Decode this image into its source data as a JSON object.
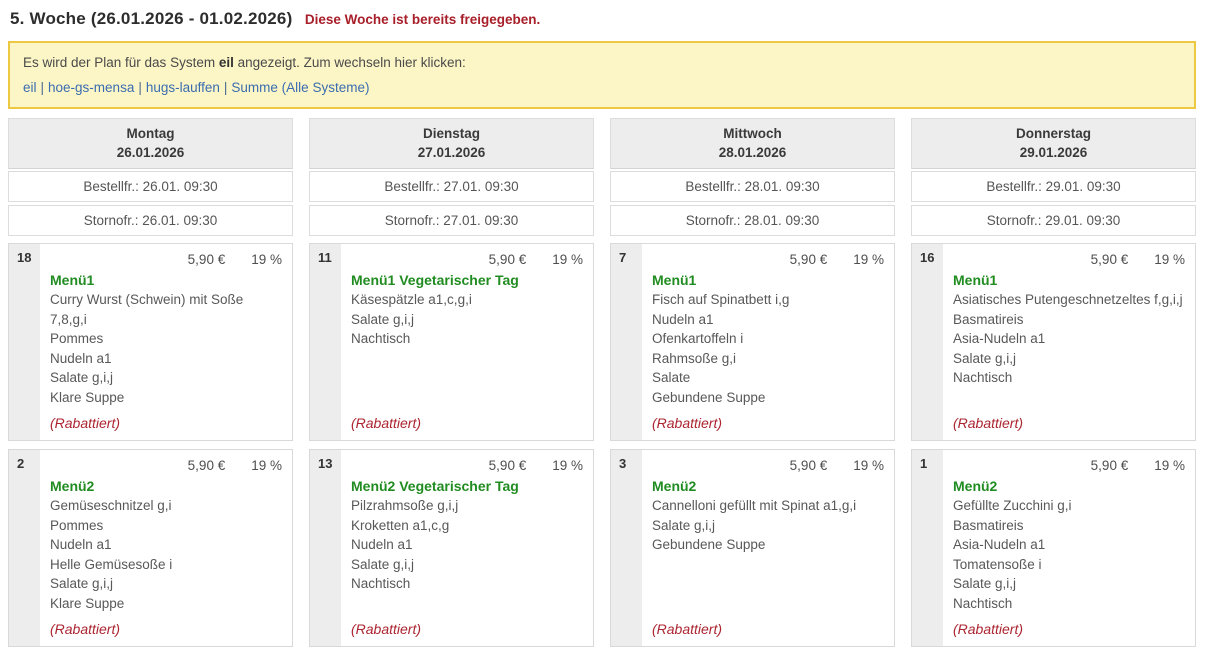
{
  "page": {
    "title": "5. Woche (26.01.2026 - 01.02.2026)",
    "released_notice": "Diese Woche ist bereits freigegeben."
  },
  "banner": {
    "text_before": "Es wird der Plan für das System",
    "system_name": "eil",
    "text_after": "angezeigt. Zum wechseln hier klicken:",
    "separator": "|",
    "links": [
      "eil",
      "hoe-gs-mensa",
      "hugs-lauffen",
      "Summe (Alle Systeme)"
    ]
  },
  "days": [
    {
      "name": "Montag",
      "date": "26.01.2026",
      "order_deadline": "Bestellfr.: 26.01. 09:30",
      "cancel_deadline": "Stornofr.: 26.01. 09:30",
      "menus": [
        {
          "count": "18",
          "price": "5,90 €",
          "tax": "19 %",
          "title": "Menü1",
          "items": [
            "Curry Wurst (Schwein) mit Soße 7,8,g,i",
            "Pommes",
            "Nudeln a1",
            "Salate g,i,j",
            "Klare Suppe"
          ],
          "note": "(Rabattiert)"
        },
        {
          "count": "2",
          "price": "5,90 €",
          "tax": "19 %",
          "title": "Menü2",
          "items": [
            "Gemüseschnitzel g,i",
            "Pommes",
            "Nudeln a1",
            "Helle Gemüsesoße i",
            "Salate g,i,j",
            "Klare Suppe"
          ],
          "note": "(Rabattiert)"
        }
      ]
    },
    {
      "name": "Dienstag",
      "date": "27.01.2026",
      "order_deadline": "Bestellfr.: 27.01. 09:30",
      "cancel_deadline": "Stornofr.: 27.01. 09:30",
      "menus": [
        {
          "count": "11",
          "price": "5,90 €",
          "tax": "19 %",
          "title": "Menü1 Vegetarischer Tag",
          "items": [
            "Käsespätzle a1,c,g,i",
            "Salate g,i,j",
            "Nachtisch"
          ],
          "note": "(Rabattiert)"
        },
        {
          "count": "13",
          "price": "5,90 €",
          "tax": "19 %",
          "title": "Menü2 Vegetarischer Tag",
          "items": [
            "Pilzrahmsoße g,i,j",
            "Kroketten a1,c,g",
            "Nudeln a1",
            "Salate g,i,j",
            "Nachtisch"
          ],
          "note": "(Rabattiert)"
        }
      ]
    },
    {
      "name": "Mittwoch",
      "date": "28.01.2026",
      "order_deadline": "Bestellfr.: 28.01. 09:30",
      "cancel_deadline": "Stornofr.: 28.01. 09:30",
      "menus": [
        {
          "count": "7",
          "price": "5,90 €",
          "tax": "19 %",
          "title": "Menü1",
          "items": [
            "Fisch auf Spinatbett i,g",
            "Nudeln a1",
            "Ofenkartoffeln i",
            "Rahmsoße g,i",
            "Salate",
            "Gebundene Suppe"
          ],
          "note": "(Rabattiert)"
        },
        {
          "count": "3",
          "price": "5,90 €",
          "tax": "19 %",
          "title": "Menü2",
          "items": [
            "Cannelloni gefüllt mit Spinat a1,g,i",
            "Salate g,i,j",
            "Gebundene Suppe"
          ],
          "note": "(Rabattiert)"
        }
      ]
    },
    {
      "name": "Donnerstag",
      "date": "29.01.2026",
      "order_deadline": "Bestellfr.: 29.01. 09:30",
      "cancel_deadline": "Stornofr.: 29.01. 09:30",
      "menus": [
        {
          "count": "16",
          "price": "5,90 €",
          "tax": "19 %",
          "title": "Menü1",
          "items": [
            "Asiatisches Putengeschnetzeltes f,g,i,j",
            "Basmatireis",
            "Asia-Nudeln a1",
            "Salate g,i,j",
            "Nachtisch"
          ],
          "note": "(Rabattiert)"
        },
        {
          "count": "1",
          "price": "5,90 €",
          "tax": "19 %",
          "title": "Menü2",
          "items": [
            "Gefüllte Zucchini g,i",
            "Basmatireis",
            "Asia-Nudeln a1",
            "Tomatensoße i",
            "Salate g,i,j",
            "Nachtisch"
          ],
          "note": "(Rabattiert)"
        }
      ]
    }
  ],
  "colors": {
    "accent_green": "#218c21",
    "alert_red": "#a81e29",
    "banner_bg": "#fcf5c6",
    "banner_border": "#ecc843",
    "link_blue": "#3a6db0",
    "header_gray": "#ededed"
  }
}
